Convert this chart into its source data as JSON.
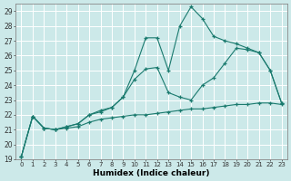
{
  "xlabel": "Humidex (Indice chaleur)",
  "bg_color": "#cce9e9",
  "line_color": "#1a7a6e",
  "grid_color": "#ffffff",
  "xlim": [
    -0.5,
    23.5
  ],
  "ylim": [
    19,
    29.5
  ],
  "yticks": [
    19,
    20,
    21,
    22,
    23,
    24,
    25,
    26,
    27,
    28,
    29
  ],
  "xticks": [
    0,
    1,
    2,
    3,
    4,
    5,
    6,
    7,
    8,
    9,
    10,
    11,
    12,
    13,
    14,
    15,
    16,
    17,
    18,
    19,
    20,
    21,
    22,
    23
  ],
  "curve1_x": [
    0,
    1,
    2,
    3,
    4,
    5,
    6,
    7,
    8,
    9,
    10,
    11,
    12,
    13,
    14,
    15,
    16,
    17,
    18,
    19,
    20,
    21,
    22,
    23
  ],
  "curve1_y": [
    19.2,
    21.9,
    21.1,
    21.0,
    21.1,
    21.2,
    21.5,
    21.7,
    21.8,
    21.9,
    22.0,
    22.0,
    22.1,
    22.2,
    22.3,
    22.4,
    22.4,
    22.5,
    22.6,
    22.7,
    22.7,
    22.8,
    22.8,
    22.7
  ],
  "curve2_x": [
    0,
    1,
    2,
    3,
    4,
    5,
    6,
    7,
    8,
    9,
    10,
    11,
    12,
    13,
    14,
    15,
    16,
    17,
    18,
    19,
    20,
    21,
    22,
    23
  ],
  "curve2_y": [
    19.2,
    21.9,
    21.1,
    21.0,
    21.2,
    21.4,
    22.0,
    22.2,
    22.5,
    23.2,
    24.4,
    25.1,
    25.2,
    23.5,
    23.2,
    23.0,
    24.0,
    24.5,
    25.5,
    26.5,
    26.4,
    26.2,
    25.0,
    22.8
  ],
  "curve3_x": [
    0,
    1,
    2,
    3,
    4,
    5,
    6,
    7,
    8,
    9,
    10,
    11,
    12,
    13,
    14,
    15,
    16,
    17,
    18,
    19,
    20,
    21,
    22,
    23
  ],
  "curve3_y": [
    19.2,
    21.9,
    21.1,
    21.0,
    21.2,
    21.4,
    22.0,
    22.3,
    22.5,
    23.2,
    25.0,
    27.2,
    27.2,
    25.0,
    28.0,
    29.3,
    28.5,
    27.3,
    27.0,
    26.8,
    26.5,
    26.2,
    25.0,
    22.8
  ]
}
